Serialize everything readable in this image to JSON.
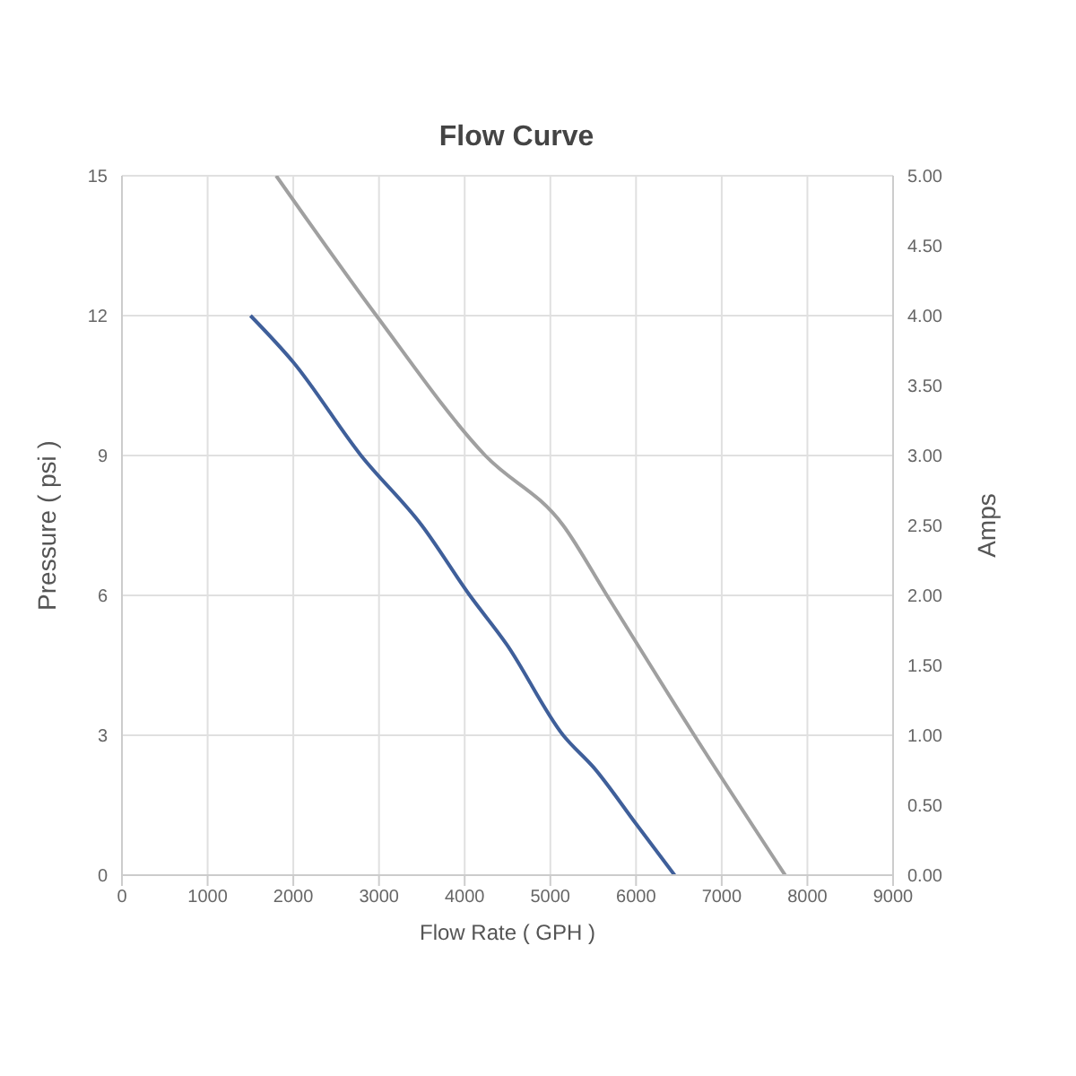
{
  "chart_data": {
    "type": "line",
    "title": "Flow Curve",
    "xlabel": "Flow Rate ( GPH )",
    "ylabel": "Pressure ( psi )",
    "y2label": "Amps",
    "xlim": [
      0,
      9000
    ],
    "xticks": [
      0,
      1000,
      2000,
      3000,
      4000,
      5000,
      6000,
      7000,
      8000,
      9000
    ],
    "ylim": [
      0,
      15
    ],
    "yticks": [
      0,
      3,
      6,
      9,
      12,
      15
    ],
    "y2lim": [
      0,
      5
    ],
    "y2ticks": [
      {
        "value": 0,
        "label": "0.00"
      },
      {
        "value": 0.5,
        "label": "0.50"
      },
      {
        "value": 1,
        "label": "1.00"
      },
      {
        "value": 1.5,
        "label": "1.50"
      },
      {
        "value": 2,
        "label": "2.00"
      },
      {
        "value": 2.5,
        "label": "2.50"
      },
      {
        "value": 3,
        "label": "3.00"
      },
      {
        "value": 3.5,
        "label": "3.50"
      },
      {
        "value": 4,
        "label": "4.00"
      },
      {
        "value": 4.5,
        "label": "4.50"
      },
      {
        "value": 5,
        "label": "5.00"
      }
    ],
    "grid": true,
    "marker": "none",
    "line_style": "solid",
    "series": [
      {
        "color": "#3f5f9a",
        "x": [
          1500,
          2000,
          2790,
          3500,
          4060,
          4490,
          5150,
          5510,
          6000,
          6450
        ],
        "values": [
          12,
          11,
          9,
          7.5,
          6,
          4.95,
          3,
          2.3,
          1.1,
          0
        ]
      },
      {
        "color": "#a0a0a0",
        "axis": "y2",
        "x": [
          1800,
          2970,
          4240,
          5150,
          5660,
          6680,
          7740
        ],
        "values": [
          5,
          4,
          3,
          2.5,
          2,
          1,
          0
        ]
      }
    ]
  }
}
